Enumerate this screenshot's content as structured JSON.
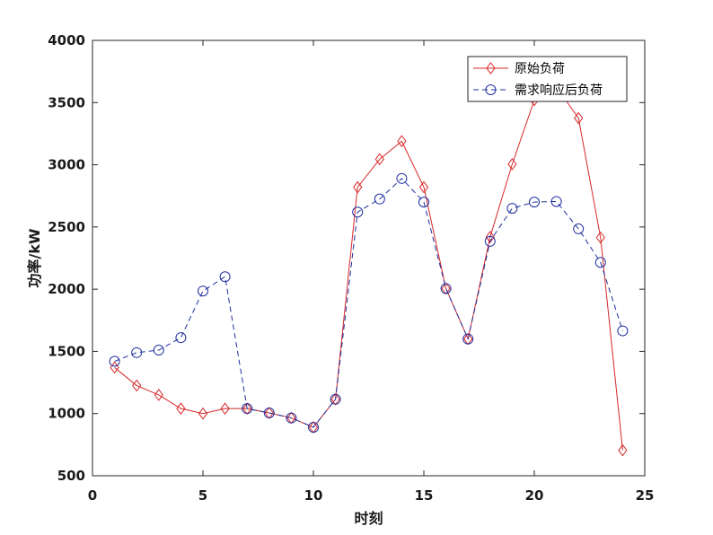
{
  "chart_data": {
    "type": "line",
    "xlabel": "时刻",
    "ylabel": "功率/kW",
    "xlim": [
      0,
      25
    ],
    "ylim": [
      500,
      4000
    ],
    "xticks": [
      0,
      5,
      10,
      15,
      20,
      25
    ],
    "yticks": [
      500,
      1000,
      1500,
      2000,
      2500,
      3000,
      3500,
      4000
    ],
    "grid": false,
    "legend_position": "top-right",
    "x": [
      1,
      2,
      3,
      4,
      5,
      6,
      7,
      8,
      9,
      10,
      11,
      12,
      13,
      14,
      15,
      16,
      17,
      18,
      19,
      20,
      21,
      22,
      23,
      24
    ],
    "series": [
      {
        "name": "原始负荷",
        "color": "#d62728",
        "marker": "diamond",
        "line_style": "solid",
        "values": [
          1370,
          1225,
          1150,
          1040,
          1000,
          1040,
          1040,
          1005,
          965,
          890,
          1115,
          2820,
          3045,
          3190,
          2820,
          2005,
          1600,
          2420,
          3005,
          3520,
          3625,
          3375,
          2415,
          705
        ]
      },
      {
        "name": "需求响应后负荷",
        "color": "#1f2fa0",
        "marker": "circle",
        "line_style": "dashed",
        "values": [
          1420,
          1490,
          1510,
          1610,
          1985,
          2100,
          1040,
          1005,
          965,
          890,
          1115,
          2620,
          2725,
          2890,
          2700,
          2005,
          1600,
          2385,
          2650,
          2700,
          2705,
          2485,
          2215,
          1665
        ]
      }
    ]
  }
}
